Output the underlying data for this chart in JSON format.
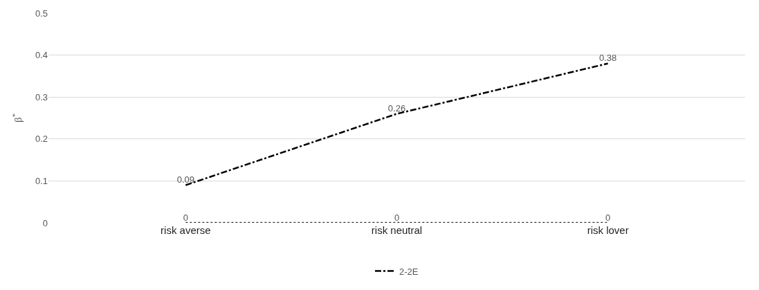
{
  "chart_data": {
    "type": "line",
    "ylabel": "β$^{*}$",
    "categories": [
      "risk averse",
      "risk neutral",
      "risk lover"
    ],
    "series": [
      {
        "name": "2-2E",
        "color": "#000000",
        "values": [
          0.09,
          0.26,
          0.38
        ],
        "line_style": "dashdot"
      },
      {
        "color": "#333333",
        "values": [
          0,
          0,
          0
        ],
        "line_style": "dotted"
      }
    ],
    "ylim": [
      0,
      0.5
    ],
    "yticks": [
      {
        "value": 0,
        "label": "0"
      },
      0.1,
      0.2,
      0.3,
      0.4,
      0.5
    ],
    "grid": "y",
    "legend": "bottom",
    "data_labels": true,
    "marker": "none"
  }
}
